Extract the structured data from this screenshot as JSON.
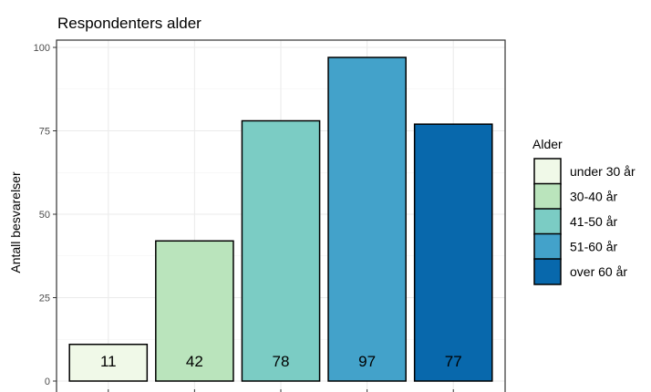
{
  "chart_data": {
    "type": "bar",
    "title": "Respondenters alder",
    "xlabel": "",
    "ylabel": "Antall besvarelser",
    "categories": [
      "under 30 år",
      "30-40 år",
      "41-50 år",
      "51-60 år",
      "over 60 år"
    ],
    "values": [
      11,
      42,
      78,
      97,
      77
    ],
    "data_labels": [
      "11",
      "42",
      "78",
      "97",
      "77"
    ],
    "colors": [
      "#f0f9e8",
      "#bae4bc",
      "#7bccc4",
      "#43a2ca",
      "#0868ac"
    ],
    "ylim": [
      0,
      100
    ],
    "yticks": [
      0,
      25,
      50,
      75,
      100
    ],
    "ytick_labels": [
      "0",
      "25",
      "50",
      "75",
      "100"
    ],
    "grid": true,
    "legend": {
      "title": "Alder",
      "position": "right",
      "entries": [
        "under 30 år",
        "30-40 år",
        "41-50 år",
        "51-60 år",
        "over 60 år"
      ]
    }
  }
}
